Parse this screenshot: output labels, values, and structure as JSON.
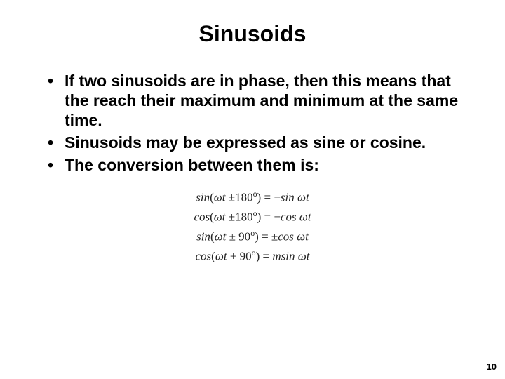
{
  "title": "Sinusoids",
  "bullets": [
    "If two sinusoids are in phase, then this means that the reach their maximum and minimum at the same time.",
    "Sinusoids may be expressed as sine or cosine.",
    "The conversion between them is:"
  ],
  "equations": {
    "eq1_html": "sin<span class='upright'>(</span>ωt <span class='upright'>±180</span><span class='deg'>o</span><span class='upright'>)</span><span class='upright'> = </span><span class='upright'>−</span>sin ωt",
    "eq2_html": "cos<span class='upright'>(</span>ωt <span class='upright'>±180</span><span class='deg'>o</span><span class='upright'>)</span><span class='upright'> = </span><span class='upright'>−</span>cos ωt",
    "eq3_html": "sin<span class='upright'>(</span>ωt <span class='upright'>± 90</span><span class='deg'>o</span><span class='upright'>)</span><span class='upright'> = </span><span class='upright'>±</span>cos ωt",
    "eq4_html": "cos<span class='upright'>(</span>ωt <span class='upright'>+ 90</span><span class='deg'>o</span><span class='upright'>)</span><span class='upright'> = </span>msin ωt"
  },
  "page_number": "10",
  "style": {
    "background": "#ffffff",
    "text_color": "#000000",
    "title_fontsize": 32,
    "bullet_fontsize": 23,
    "equation_fontsize": 17,
    "equation_family": "Times New Roman",
    "pagenum_fontsize": 13
  }
}
